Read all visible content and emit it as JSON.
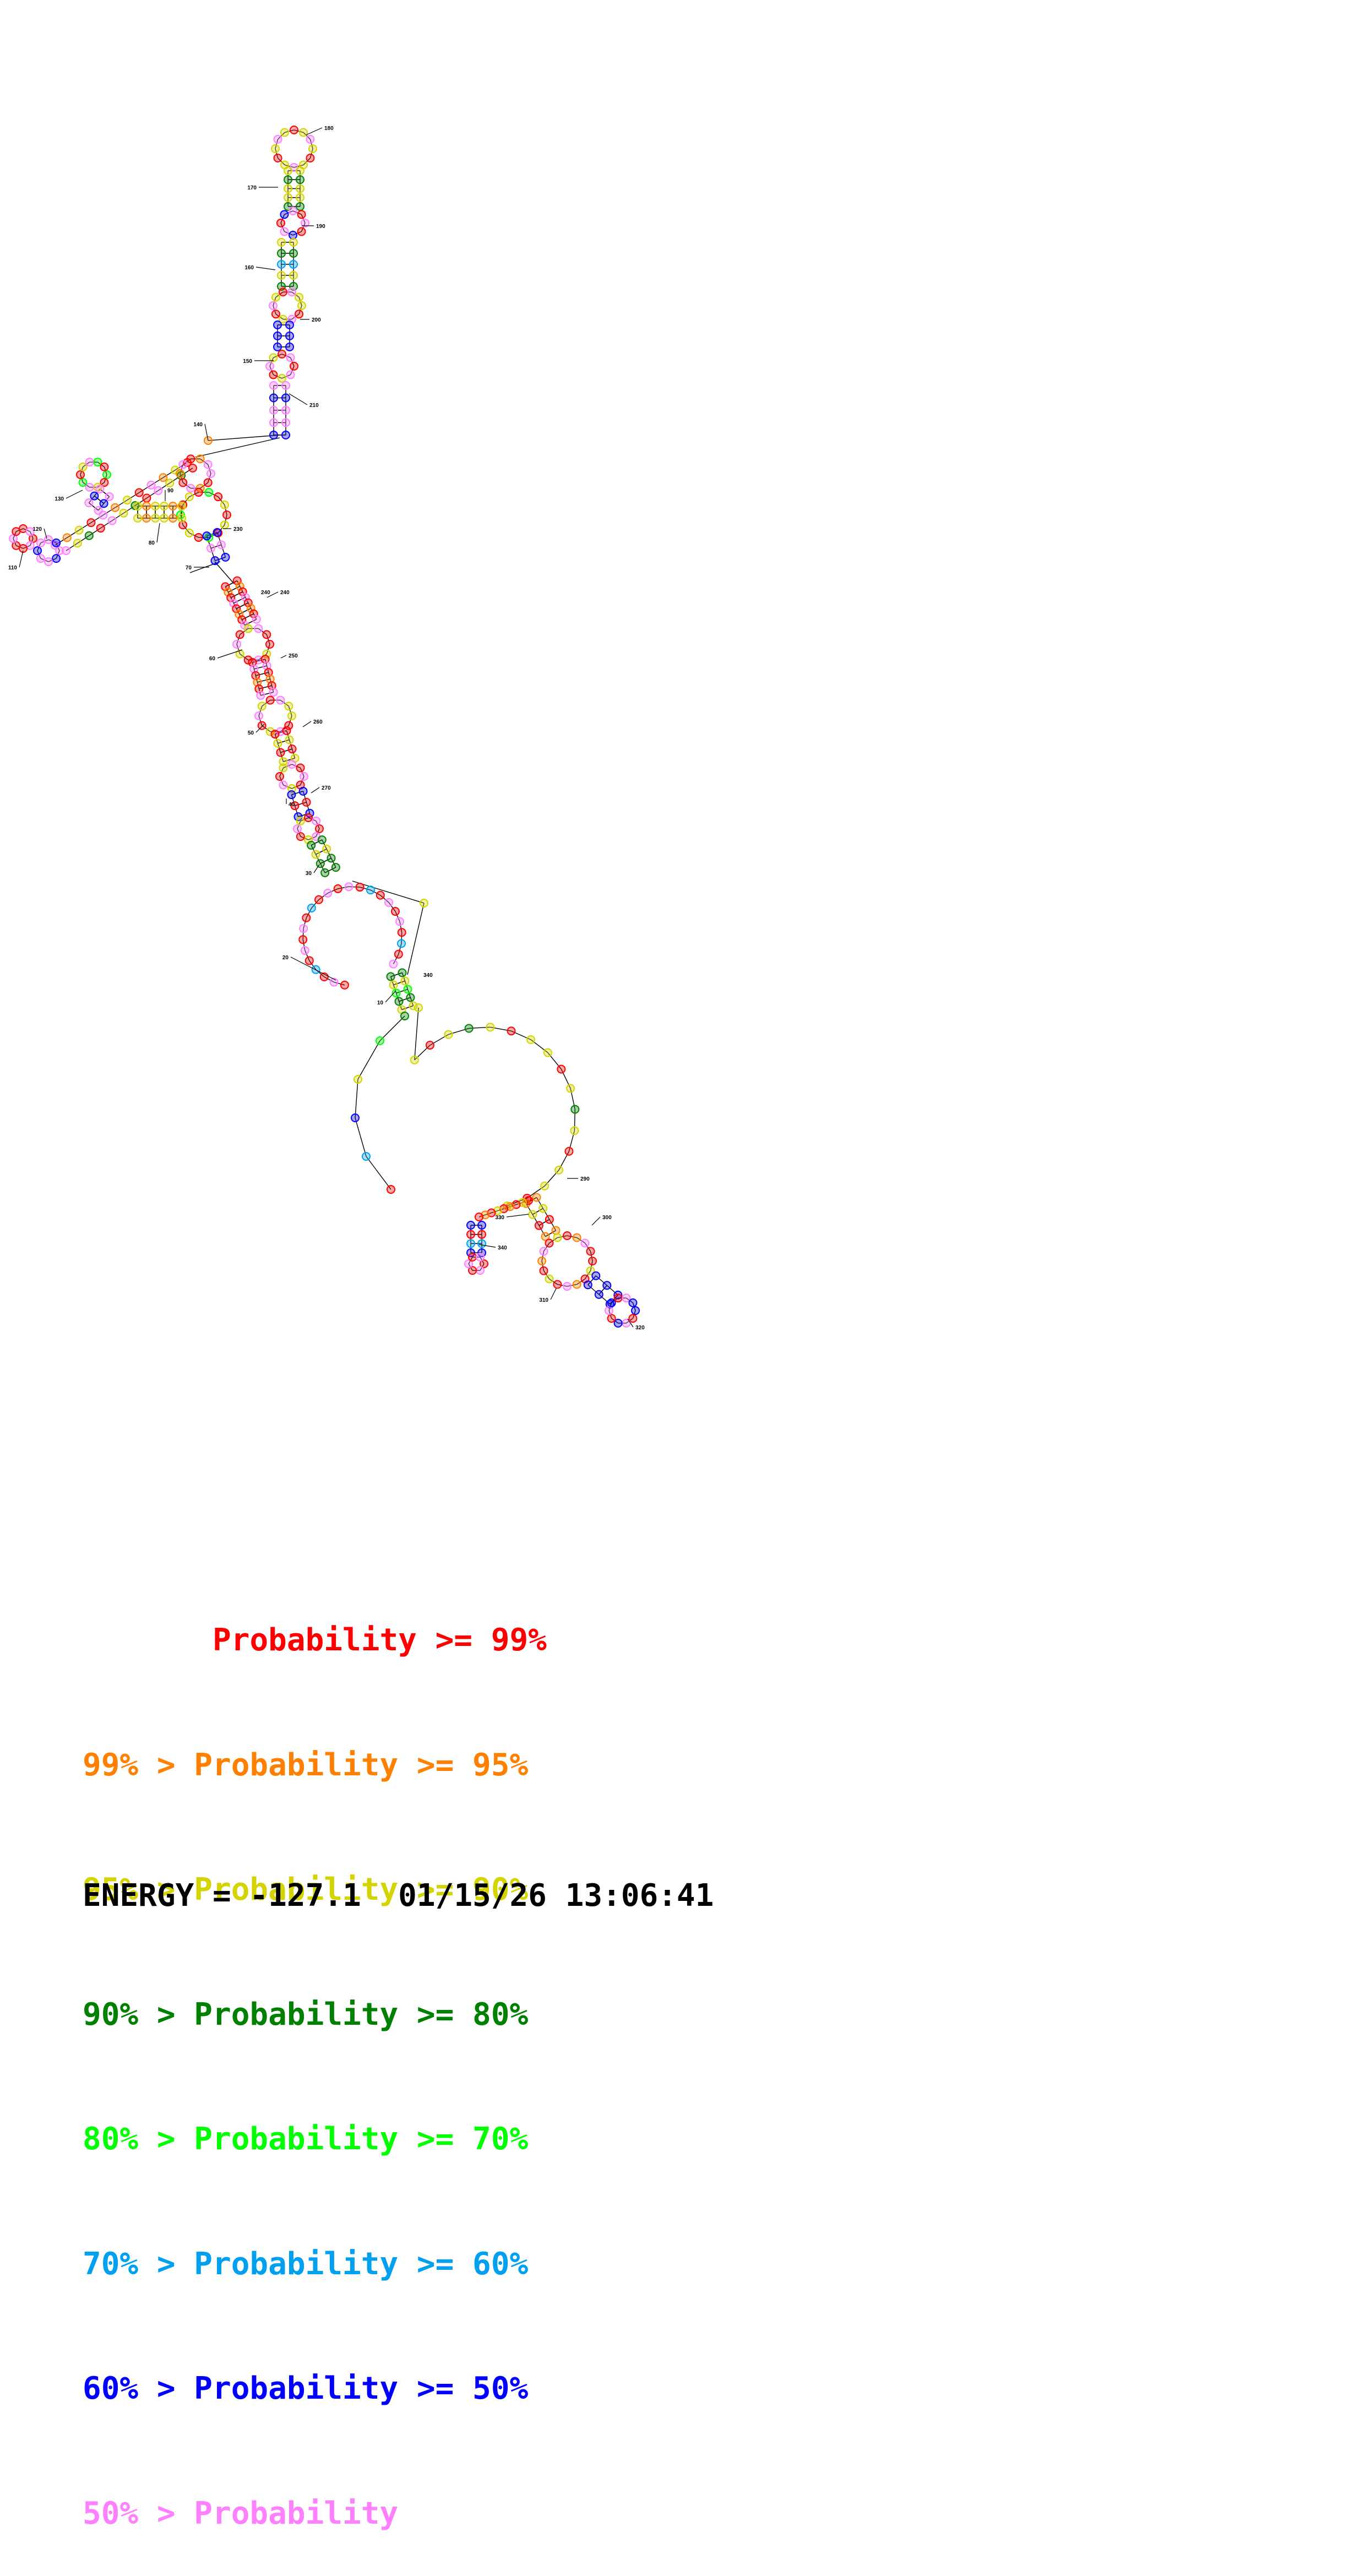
{
  "structure": {
    "position_labels": [
      "10",
      "20",
      "30",
      "40",
      "50",
      "60",
      "70",
      "80",
      "90",
      "100",
      "110",
      "120",
      "130",
      "140",
      "150",
      "160",
      "170",
      "180",
      "190",
      "200",
      "210",
      "220",
      "230",
      "240",
      "250",
      "260",
      "270",
      "280",
      "290",
      "300",
      "310",
      "320",
      "330",
      "340"
    ],
    "base_colors": {
      "red": "#ff0000",
      "orange": "#ff8000",
      "yellow": "#d4d400",
      "darkgreen": "#008000",
      "green": "#00ff00",
      "lightblue": "#00a0f0",
      "blue": "#0000ff",
      "pink": "#ff80ff",
      "line": "#000000"
    }
  },
  "legend": [
    {
      "prefix": "       ",
      "text": "Probability >= 99%",
      "color": "#ff0000"
    },
    {
      "prefix": "",
      "text": "99% > Probability >= 95%",
      "color": "#ff8000"
    },
    {
      "prefix": "",
      "text": "95% > Probability >= 90%",
      "color": "#d4d400"
    },
    {
      "prefix": "",
      "text": "90% > Probability >= 80%",
      "color": "#008000"
    },
    {
      "prefix": "",
      "text": "80% > Probability >= 70%",
      "color": "#00ff00"
    },
    {
      "prefix": "",
      "text": "70% > Probability >= 60%",
      "color": "#00a0f0"
    },
    {
      "prefix": "",
      "text": "60% > Probability >= 50%",
      "color": "#0000ff"
    },
    {
      "prefix": "",
      "text": "50% > Probability",
      "color": "#ff80ff"
    }
  ],
  "footer": {
    "energy_text": "ENERGY = -127.1",
    "timestamp": "01/15/26 13:06:41"
  }
}
